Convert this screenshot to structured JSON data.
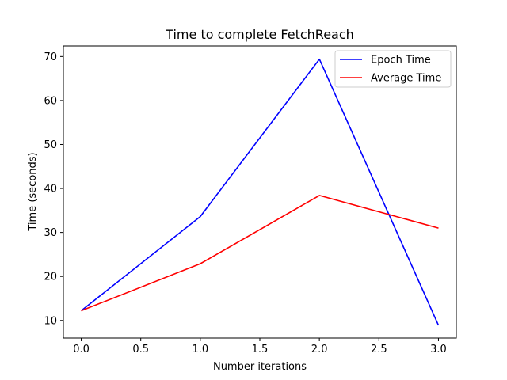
{
  "chart_data": {
    "type": "line",
    "title": "Time to complete FetchReach",
    "xlabel": "Number iterations",
    "ylabel": "Time (seconds)",
    "x": [
      0.0,
      1.0,
      2.0,
      3.0
    ],
    "series": [
      {
        "name": "Epoch Time",
        "color": "#0000ff",
        "values": [
          12.2,
          33.6,
          69.4,
          8.9
        ]
      },
      {
        "name": "Average Time",
        "color": "#ff0000",
        "values": [
          12.2,
          22.9,
          38.4,
          31.0
        ]
      }
    ],
    "xlim": [
      -0.15,
      3.15
    ],
    "ylim": [
      6.0,
      72.4
    ],
    "xticks": [
      0.0,
      0.5,
      1.0,
      1.5,
      2.0,
      2.5,
      3.0
    ],
    "xtick_labels": [
      "0.0",
      "0.5",
      "1.0",
      "1.5",
      "2.0",
      "2.5",
      "3.0"
    ],
    "yticks": [
      10,
      20,
      30,
      40,
      50,
      60,
      70
    ],
    "ytick_labels": [
      "10",
      "20",
      "30",
      "40",
      "50",
      "60",
      "70"
    ],
    "grid": false,
    "legend_position": "top-right"
  }
}
